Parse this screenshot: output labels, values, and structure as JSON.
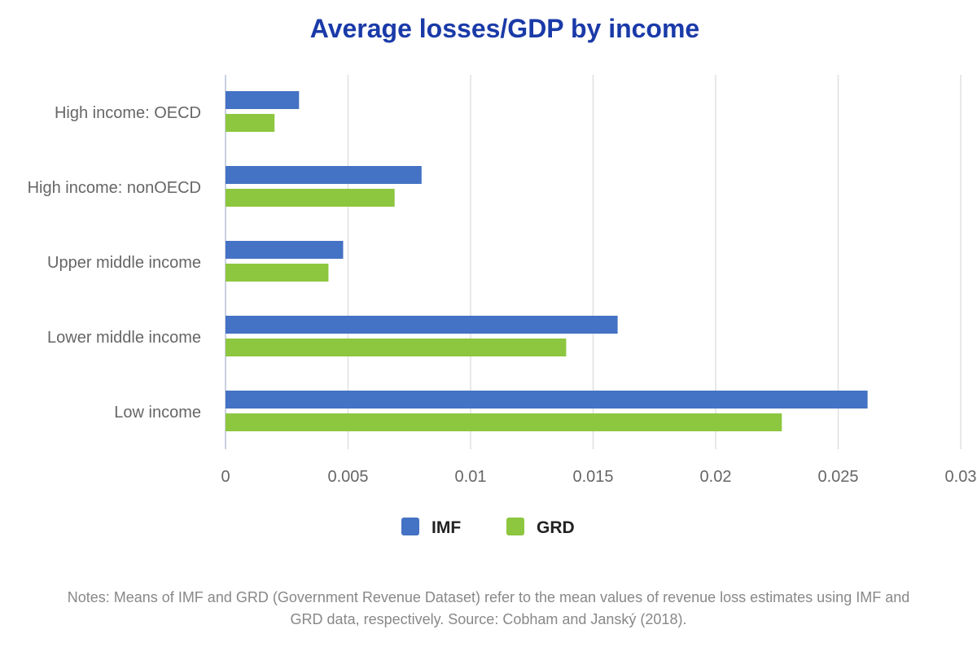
{
  "chart_data": {
    "type": "bar",
    "orientation": "horizontal",
    "title": "Average losses/GDP by income",
    "categories": [
      "High income: OECD",
      "High income: nonOECD",
      "Upper middle income",
      "Lower middle income",
      "Low income"
    ],
    "series": [
      {
        "name": "IMF",
        "color": "#4472c4",
        "values": [
          0.003,
          0.008,
          0.0048,
          0.016,
          0.0262
        ]
      },
      {
        "name": "GRD",
        "color": "#8dc63f",
        "values": [
          0.002,
          0.0069,
          0.0042,
          0.0139,
          0.0227
        ]
      }
    ],
    "xlim": [
      0,
      0.03
    ],
    "xticks": [
      "0",
      "0.005",
      "0.01",
      "0.015",
      "0.02",
      "0.025",
      "0.03"
    ],
    "grid": true,
    "legend": "bottom",
    "title_color": "#1a3aa8"
  },
  "notes": {
    "line1": "Notes: Means of IMF and GRD (Government Revenue Dataset) refer to the mean values of revenue loss estimates using IMF and",
    "line2": "GRD data, respectively. Source: Cobham and Janský (2018)."
  }
}
